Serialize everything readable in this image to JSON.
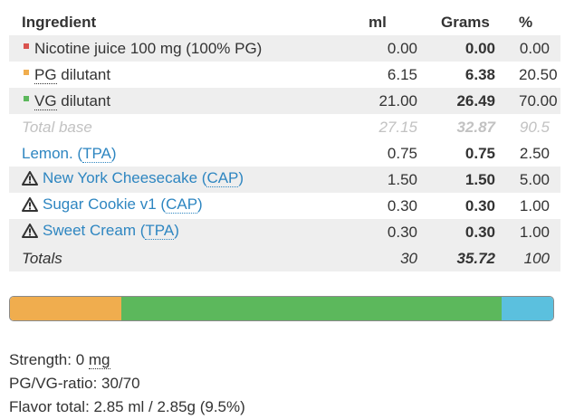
{
  "table": {
    "headers": {
      "ingredient": "Ingredient",
      "ml": "ml",
      "grams": "Grams",
      "pct": "%"
    },
    "base_rows": [
      {
        "label": "Nicotine juice 100 mg (100% PG)",
        "ml": "0.00",
        "grams": "0.00",
        "pct": "0.00",
        "color": "#d9534f"
      },
      {
        "label_prefix": "",
        "label_dotted": "PG",
        "label_suffix": " dilutant",
        "ml": "6.15",
        "grams": "6.38",
        "pct": "20.50",
        "color": "#f0ad4e"
      },
      {
        "label_prefix": "",
        "label_dotted": "VG",
        "label_suffix": " dilutant",
        "ml": "21.00",
        "grams": "26.49",
        "pct": "70.00",
        "color": "#5cb85c"
      }
    ],
    "total_base": {
      "label": "Total base",
      "ml": "27.15",
      "grams": "32.87",
      "pct": "90.5"
    },
    "flavors": [
      {
        "name": "Lemon. (",
        "vendor": "TPA",
        "suffix": ")",
        "ml": "0.75",
        "grams": "0.75",
        "pct": "2.50",
        "warning": false
      },
      {
        "name": "New York Cheesecake (",
        "vendor": "CAP",
        "suffix": ")",
        "ml": "1.50",
        "grams": "1.50",
        "pct": "5.00",
        "warning": true
      },
      {
        "name": "Sugar Cookie v1 (",
        "vendor": "CAP",
        "suffix": ")",
        "ml": "0.30",
        "grams": "0.30",
        "pct": "1.00",
        "warning": true
      },
      {
        "name": "Sweet Cream (",
        "vendor": "TPA",
        "suffix": ")",
        "ml": "0.30",
        "grams": "0.30",
        "pct": "1.00",
        "warning": true
      }
    ],
    "totals": {
      "label": "Totals",
      "ml": "30",
      "grams": "35.72",
      "pct": "100"
    }
  },
  "composition_bar": {
    "segments": [
      {
        "name": "pg",
        "fraction": 0.205,
        "color": "#f0ad4e"
      },
      {
        "name": "vg",
        "fraction": 0.7,
        "color": "#5cb85c"
      },
      {
        "name": "flavor",
        "fraction": 0.095,
        "color": "#5bc0de"
      }
    ]
  },
  "info": {
    "strength_label": "Strength: 0 ",
    "strength_unit": "mg",
    "ratio_label": "PG/VG-ratio: 30/70",
    "flavor_total": "Flavor total: 2.85 ml / 2.85g (9.5%)"
  },
  "icons": {
    "warning": "warning-triangle-icon"
  }
}
